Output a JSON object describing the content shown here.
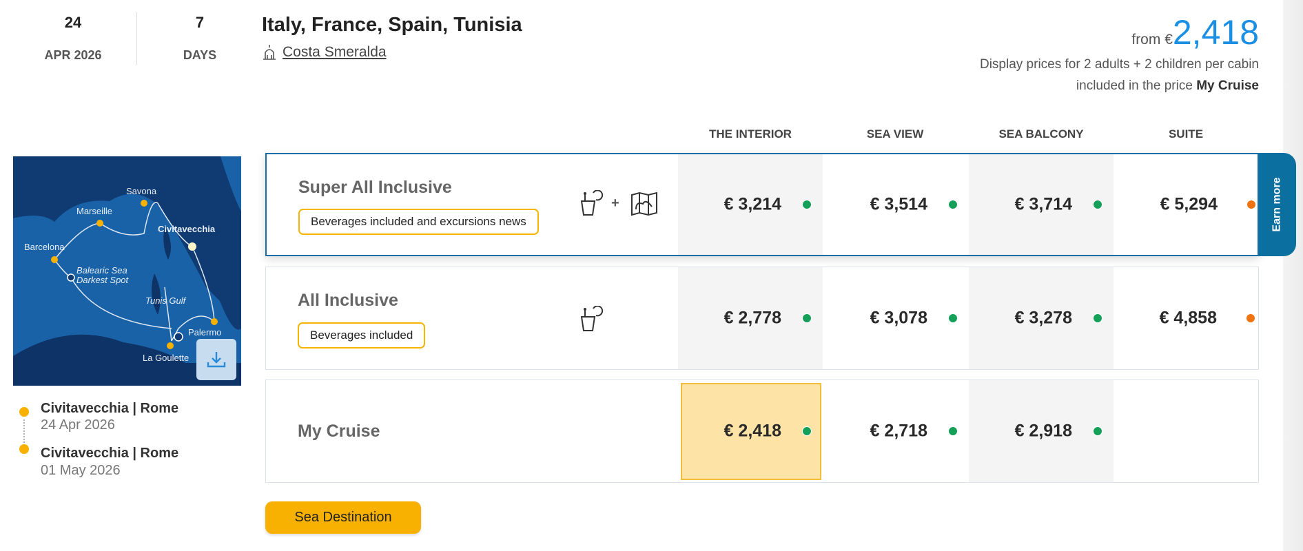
{
  "header": {
    "date_day": "24",
    "date_month": "APR 2026",
    "duration": "7",
    "duration_unit": "DAYS",
    "title": "Italy, France, Spain, Tunisia",
    "ship_name": "Costa Smeralda",
    "from_label": "from €",
    "from_price": "2,418",
    "price_note": "Display prices for 2 adults + 2 children per cabin included in the price",
    "price_note_bold": "My Cruise"
  },
  "map": {
    "labels": [
      "Savona",
      "Marseille",
      "Civitavecchia",
      "Barcelona",
      "Balearic Sea",
      "Darkest Spot",
      "Tunis Gulf",
      "Palermo",
      "La Goulette"
    ],
    "download_icon": "download-icon"
  },
  "itinerary": [
    {
      "port": "Civitavecchia | Rome",
      "date": "24 Apr 2026"
    },
    {
      "port": "Civitavecchia | Rome",
      "date": "01 May 2026"
    }
  ],
  "columns": [
    "THE INTERIOR",
    "SEA VIEW",
    "SEA BALCONY",
    "SUITE"
  ],
  "rows": [
    {
      "name": "Super All Inclusive",
      "badge": "Beverages included and excursions news",
      "icons": [
        "drink-icon",
        "map-icon"
      ],
      "plus": "+",
      "prices": [
        {
          "v": "€ 3,214",
          "s": "#15a05a"
        },
        {
          "v": "€ 3,514",
          "s": "#15a05a"
        },
        {
          "v": "€ 3,714",
          "s": "#15a05a"
        },
        {
          "v": "€ 5,294",
          "s": "#ef7411"
        }
      ]
    },
    {
      "name": "All Inclusive",
      "badge": "Beverages included",
      "icons": [
        "drink-icon"
      ],
      "prices": [
        {
          "v": "€ 2,778",
          "s": "#15a05a"
        },
        {
          "v": "€ 3,078",
          "s": "#15a05a"
        },
        {
          "v": "€ 3,278",
          "s": "#15a05a"
        },
        {
          "v": "€ 4,858",
          "s": "#ef7411"
        }
      ]
    },
    {
      "name": "My Cruise",
      "prices": [
        {
          "v": "€ 2,418",
          "s": "#15a05a"
        },
        {
          "v": "€ 2,718",
          "s": "#15a05a"
        },
        {
          "v": "€ 2,918",
          "s": "#15a05a"
        }
      ],
      "selected_column": "THE INTERIOR"
    }
  ],
  "earn_more": "Earn more",
  "sea_destination_button": "Sea Destination",
  "colors": {
    "accent": "#1a8fe3",
    "highlight": "#fde4a6",
    "badge_border": "#f6b400",
    "earn_more": "#0b6fa0",
    "available": "#15a05a",
    "limited": "#ef7411"
  }
}
